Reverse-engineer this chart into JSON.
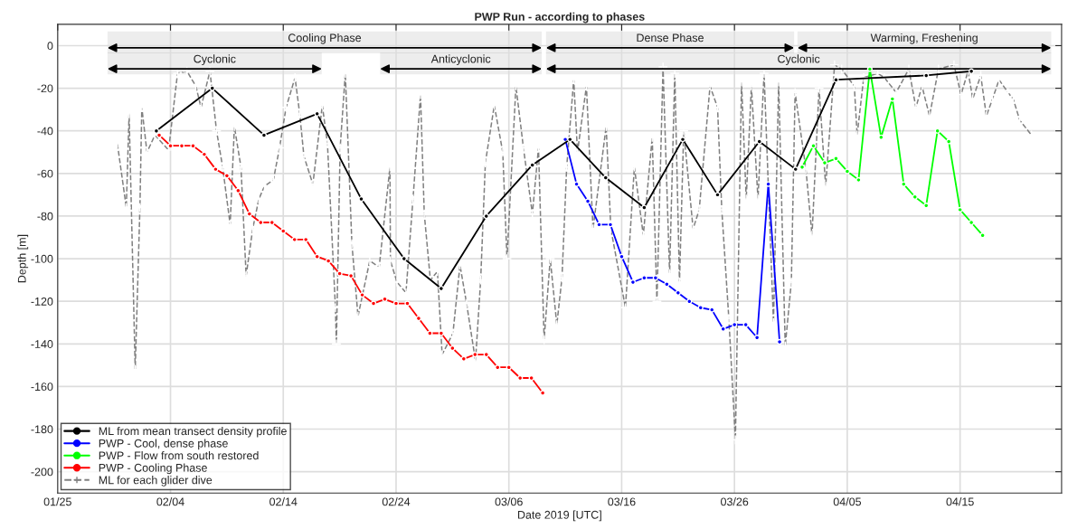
{
  "chart_data": {
    "type": "line",
    "title": "PWP Run - according to phases",
    "xlabel": "Date 2019 [UTC]",
    "ylabel": "Depth [m]",
    "xlim": [
      "2019-01-25",
      "2019-04-24"
    ],
    "xticks": [
      {
        "value": "2019-01-25",
        "label": "01/25"
      },
      {
        "value": "2019-02-04",
        "label": "02/04"
      },
      {
        "value": "2019-02-14",
        "label": "02/14"
      },
      {
        "value": "2019-02-24",
        "label": "02/24"
      },
      {
        "value": "2019-03-06",
        "label": "03/06"
      },
      {
        "value": "2019-03-16",
        "label": "03/16"
      },
      {
        "value": "2019-03-26",
        "label": "03/26"
      },
      {
        "value": "2019-04-05",
        "label": "04/05"
      },
      {
        "value": "2019-04-15",
        "label": "04/15"
      }
    ],
    "ylim": [
      -210,
      10
    ],
    "yticks": [
      -200,
      -180,
      -160,
      -140,
      -120,
      -100,
      -80,
      -60,
      -40,
      -20,
      0
    ],
    "grid": true,
    "legend": "bottom left",
    "series": [
      {
        "name": "ML from mean transect density profile",
        "color": "#000000",
        "marker": "circle",
        "line_style": "solid",
        "x": [
          "2019-02-02T18:00",
          "2019-02-07T17:00",
          "2019-02-12T07:00",
          "2019-02-17T00:00",
          "2019-02-20T22:00",
          "2019-02-24T17:00",
          "2019-02-28T00:00",
          "2019-03-04T00:00",
          "2019-03-08T02:00",
          "2019-03-11T10:00",
          "2019-03-14T14:00",
          "2019-03-18T00:00",
          "2019-03-21T10:00",
          "2019-03-24T12:00",
          "2019-03-28T05:00",
          "2019-03-31T10:00",
          "2019-04-04T00:00",
          "2019-04-12T00:00",
          "2019-04-16T00:00"
        ],
        "values": [
          -40,
          -20,
          -42,
          -32,
          -72,
          -100,
          -114,
          -80,
          -56,
          -44,
          -62,
          -76,
          -44,
          -70,
          -45,
          -58,
          -16,
          -14,
          -12
        ]
      },
      {
        "name": "PWP - Cool, dense phase",
        "color": "#0000ff",
        "marker": "circle",
        "line_style": "solid",
        "x": [
          "2019-03-11",
          "2019-03-12",
          "2019-03-13",
          "2019-03-14",
          "2019-03-15",
          "2019-03-16",
          "2019-03-17",
          "2019-03-18",
          "2019-03-19",
          "2019-03-20",
          "2019-03-21",
          "2019-03-22",
          "2019-03-23",
          "2019-03-24",
          "2019-03-25",
          "2019-03-26",
          "2019-03-27",
          "2019-03-28",
          "2019-03-29",
          "2019-03-30"
        ],
        "values": [
          -44,
          -65,
          -73,
          -84,
          -84,
          -99,
          -111,
          -109,
          -109,
          -112,
          -116,
          -120,
          -123,
          -124,
          -133,
          -131,
          -131,
          -137,
          -65,
          -139
        ]
      },
      {
        "name": "PWP - Flow from south restored",
        "color": "#00ff00",
        "marker": "circle",
        "line_style": "solid",
        "x": [
          "2019-04-01",
          "2019-04-02",
          "2019-04-03",
          "2019-04-04",
          "2019-04-05",
          "2019-04-06",
          "2019-04-07",
          "2019-04-08",
          "2019-04-09",
          "2019-04-10",
          "2019-04-11",
          "2019-04-12",
          "2019-04-13",
          "2019-04-14",
          "2019-04-15",
          "2019-04-16",
          "2019-04-17"
        ],
        "values": [
          -57,
          -47,
          -55,
          -53,
          -59,
          -63,
          -11,
          -43,
          -25,
          -65,
          -71,
          -75,
          -40,
          -45,
          -77,
          -83,
          -89
        ]
      },
      {
        "name": "PWP - Cooling Phase",
        "color": "#ff0000",
        "marker": "circle",
        "line_style": "solid",
        "x": [
          "2019-02-03",
          "2019-02-04",
          "2019-02-05",
          "2019-02-06",
          "2019-02-07",
          "2019-02-08",
          "2019-02-09",
          "2019-02-10",
          "2019-02-11",
          "2019-02-12",
          "2019-02-13",
          "2019-02-14",
          "2019-02-15",
          "2019-02-16",
          "2019-02-17",
          "2019-02-18",
          "2019-02-19",
          "2019-02-20",
          "2019-02-21",
          "2019-02-22",
          "2019-02-23",
          "2019-02-24",
          "2019-02-25",
          "2019-02-26",
          "2019-02-27",
          "2019-02-28",
          "2019-03-01",
          "2019-03-02",
          "2019-03-03",
          "2019-03-04",
          "2019-03-05",
          "2019-03-06",
          "2019-03-07",
          "2019-03-08",
          "2019-03-09"
        ],
        "values": [
          -42,
          -47,
          -47,
          -47,
          -51,
          -58,
          -61,
          -68,
          -79,
          -83,
          -83,
          -87,
          -91,
          -91,
          -99,
          -101,
          -107,
          -108,
          -117,
          -121,
          -119,
          -121,
          -121,
          -128,
          -135,
          -135,
          -142,
          -147,
          -145,
          -145,
          -151,
          -151,
          -156,
          -156,
          -163
        ]
      },
      {
        "name": "ML for each glider dive",
        "color": "#808080",
        "marker": "cross",
        "line_style": "dashed",
        "x": [
          "2019-01-30T07:00",
          "2019-01-31T02:00",
          "2019-01-31T08:00",
          "2019-01-31T21:00",
          "2019-02-01T07:00",
          "2019-02-01T11:00",
          "2019-02-01T22:00",
          "2019-02-02T15:00",
          "2019-02-03T20:00",
          "2019-02-04T15:00",
          "2019-02-05T11:00",
          "2019-02-06T06:00",
          "2019-02-06T17:00",
          "2019-02-07T12:00",
          "2019-02-08T02:00",
          "2019-02-08T15:00",
          "2019-02-09T07:00",
          "2019-02-09T16:00",
          "2019-02-10T06:00",
          "2019-02-10T17:00",
          "2019-02-11T07:00",
          "2019-02-11T20:00",
          "2019-02-12T08:00",
          "2019-02-13T03:00",
          "2019-02-13T16:00",
          "2019-02-14T06:00",
          "2019-02-15T01:00",
          "2019-02-15T11:00",
          "2019-02-15T20:00",
          "2019-02-16T15:00",
          "2019-02-17T11:00",
          "2019-02-17T22:00",
          "2019-02-18T15:00",
          "2019-02-18T17:00",
          "2019-02-19T01:00",
          "2019-02-19T12:00",
          "2019-02-20T02:00",
          "2019-02-20T15:00",
          "2019-02-21T16:00",
          "2019-02-22T12:00",
          "2019-02-23T11:00",
          "2019-02-23T12:00",
          "2019-02-24T02:00",
          "2019-02-24T21:00",
          "2019-02-25T12:00",
          "2019-02-26T04:00",
          "2019-02-26T12:00",
          "2019-02-27T01:00",
          "2019-02-27T16:00",
          "2019-02-28T02:00",
          "2019-03-01T01:00",
          "2019-03-01T16:00",
          "2019-03-02T06:00",
          "2019-03-03T01:00",
          "2019-03-03T12:00",
          "2019-03-03T22:00",
          "2019-03-04T17:00",
          "2019-03-05T11:00",
          "2019-03-05T20:00",
          "2019-03-06T15:00",
          "2019-03-07T07:00",
          "2019-03-08T02:00",
          "2019-03-08T15:00",
          "2019-03-09T03:00",
          "2019-03-09T16:00",
          "2019-03-10T06:00",
          "2019-03-10T17:00",
          "2019-03-11T03:00",
          "2019-03-11T18:00",
          "2019-03-12T02:00",
          "2019-03-12T21:00",
          "2019-03-13T11:00",
          "2019-03-14T15:00",
          "2019-03-15T01:00",
          "2019-03-16T08:00",
          "2019-03-17T03:00",
          "2019-03-17T22:00",
          "2019-03-18T17:00",
          "2019-03-19T03:00",
          "2019-03-19T16:00",
          "2019-03-20T06:00",
          "2019-03-20T17:00",
          "2019-03-21T03:00",
          "2019-03-21T12:00",
          "2019-03-22T08:00",
          "2019-03-22T21:00",
          "2019-03-23T20:00",
          "2019-03-24T12:00",
          "2019-03-24T21:00",
          "2019-03-25T12:00",
          "2019-03-26T02:00",
          "2019-03-26T15:00",
          "2019-03-27T01:00",
          "2019-03-27T12:00",
          "2019-03-28T02:00",
          "2019-03-28T15:00",
          "2019-03-29T11:00",
          "2019-03-29T22:00",
          "2019-03-30T12:00",
          "2019-03-31T01:00",
          "2019-03-31T09:00",
          "2019-04-01T08:00",
          "2019-04-01T21:00",
          "2019-04-02T12:00",
          "2019-04-03T02:00",
          "2019-04-03T21:00",
          "2019-04-04T12:00",
          "2019-04-05T15:00",
          "2019-04-05T21:00",
          "2019-04-06T11:00",
          "2019-04-07T17:00",
          "2019-04-08T07:00",
          "2019-04-09T08:00",
          "2019-04-10T11:00",
          "2019-04-11T02:00",
          "2019-04-11T15:00",
          "2019-04-12T07:00",
          "2019-04-13T02:00",
          "2019-04-14T11:00",
          "2019-04-15T02:00",
          "2019-04-15T17:00",
          "2019-04-16T03:00",
          "2019-04-16T20:00",
          "2019-04-17T08:00",
          "2019-04-17T21:00",
          "2019-04-18T11:00",
          "2019-04-19T06:00",
          "2019-04-19T17:00",
          "2019-04-20T07:00",
          "2019-04-21T08:00"
        ],
        "values": [
          -46,
          -76,
          -32,
          -152,
          -76,
          -29,
          -50,
          -42,
          -49,
          -13,
          -12,
          -19,
          -29,
          -12,
          -40,
          -57,
          -84,
          -38,
          -57,
          -108,
          -86,
          -72,
          -66,
          -63,
          -48,
          -29,
          -15,
          -32,
          -52,
          -65,
          -28,
          -46,
          -123,
          -140,
          -48,
          -13,
          -93,
          -127,
          -101,
          -104,
          -57,
          -101,
          -111,
          -116,
          -72,
          -23,
          -79,
          -110,
          -106,
          -145,
          -135,
          -103,
          -121,
          -148,
          -110,
          -55,
          -28,
          -50,
          -100,
          -19,
          -48,
          -79,
          -48,
          -138,
          -100,
          -131,
          -109,
          -57,
          -16,
          -50,
          -19,
          -86,
          -38,
          -86,
          -123,
          -57,
          -89,
          -43,
          -120,
          -10,
          -107,
          -13,
          -111,
          -40,
          -86,
          -77,
          -19,
          -29,
          -77,
          -128,
          -185,
          -17,
          -72,
          -19,
          -72,
          -13,
          -130,
          -17,
          -141,
          -111,
          -22,
          -58,
          -89,
          -20,
          -66,
          -9,
          -11,
          -19,
          -42,
          -15,
          -13,
          -15,
          -22,
          -11,
          -29,
          -19,
          -33,
          -11,
          -9,
          -23,
          -12,
          -25,
          -14,
          -33,
          -25,
          -16,
          -22,
          -25,
          -35,
          -42
        ]
      }
    ],
    "bands": [
      {
        "axis": "x",
        "from": "2019-01-29T10:00",
        "to": "2019-03-08T22:00",
        "label": "Cooling Phase",
        "color": "#000000"
      },
      {
        "axis": "x",
        "from": "2019-01-29T10:00",
        "to": "2019-02-17T10:00",
        "label": "Cyclonic",
        "color": "#000000"
      },
      {
        "axis": "x",
        "from": "2019-02-22T14:00",
        "to": "2019-03-08T22:00",
        "label": "Anticyclonic",
        "color": "#000000"
      },
      {
        "axis": "x",
        "from": "2019-03-09T07:00",
        "to": "2019-03-31T07:00",
        "label": "Dense Phase",
        "color": "#000000"
      },
      {
        "axis": "x",
        "from": "2019-03-09T07:00",
        "to": "2019-04-23T02:00",
        "label": "Cyclonic",
        "color": "#000000"
      },
      {
        "axis": "x",
        "from": "2019-03-31T14:00",
        "to": "2019-04-23T02:00",
        "label": "Warming, Freshening",
        "color": "#000000"
      }
    ]
  }
}
